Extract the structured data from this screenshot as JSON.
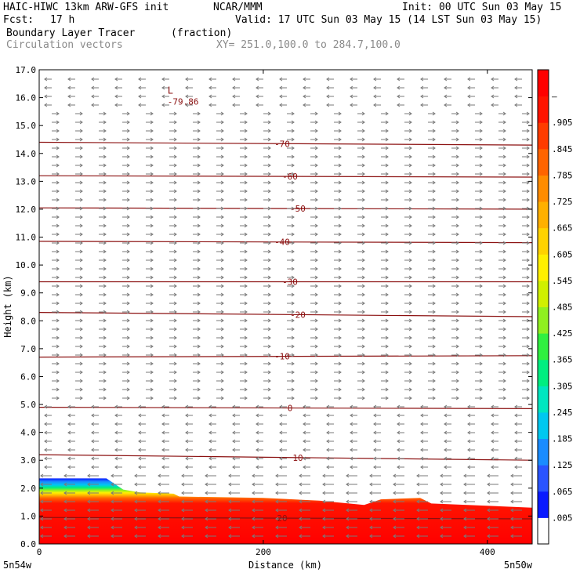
{
  "header": {
    "model": "HAIC-HIWC 13km ARW-GFS init",
    "org": "NCAR/MMM",
    "init": "Init: 00 UTC Sun 03 May 15",
    "fcst_label": "Fcst:",
    "fcst_value": "17 h",
    "valid": "Valid: 17 UTC Sun 03 May 15 (14 LST Sun 03 May 15)",
    "field": "Boundary Layer Tracer",
    "units": "(fraction)",
    "vectors": "Circulation vectors",
    "xy": "XY= 251.0,100.0 to 284.7,100.0"
  },
  "chart_data": {
    "type": "heatmap",
    "title": "Boundary Layer Tracer",
    "xlabel": "Distance (km)",
    "ylabel": "Height (km)",
    "xlim": [
      0,
      440
    ],
    "ylim": [
      0,
      17
    ],
    "x_ticks": [
      "0",
      "200",
      "400"
    ],
    "y_ticks": [
      "0.0",
      "1.0",
      "2.0",
      "3.0",
      "4.0",
      "5.0",
      "6.0",
      "7.0",
      "8.0",
      "9.0",
      "10.0",
      "11.0",
      "12.0",
      "13.0",
      "14.0",
      "15.0",
      "16.0",
      "17.0"
    ],
    "corner_labels": {
      "left": "5n54w",
      "right": "5n50w"
    },
    "colorbar_labels": [
      ".005",
      ".065",
      ".125",
      ".185",
      ".245",
      ".305",
      ".365",
      ".425",
      ".485",
      ".545",
      ".605",
      ".665",
      ".725",
      ".785",
      ".845",
      ".905",
      "–"
    ],
    "colorbar_colors": [
      "#ffffff",
      "#0a1aff",
      "#2a54ff",
      "#1a8cff",
      "#00c8f0",
      "#00e6c0",
      "#00ee80",
      "#30f040",
      "#90f020",
      "#d0f000",
      "#fff000",
      "#ffd200",
      "#ffb000",
      "#ff8c00",
      "#ff6400",
      "#ff3c00",
      "#ff1400",
      "#ff0000"
    ],
    "boundary_layer_top_km": [
      [
        0,
        2.35
      ],
      [
        60,
        2.35
      ],
      [
        75,
        1.95
      ],
      [
        90,
        1.85
      ],
      [
        120,
        1.8
      ],
      [
        125,
        1.7
      ],
      [
        200,
        1.65
      ],
      [
        250,
        1.55
      ],
      [
        290,
        1.4
      ],
      [
        305,
        1.6
      ],
      [
        340,
        1.65
      ],
      [
        350,
        1.45
      ],
      [
        440,
        1.3
      ]
    ],
    "isotherms_c": [
      {
        "label": "-70",
        "x": [
          0,
          440
        ],
        "y": [
          14.4,
          14.3
        ]
      },
      {
        "label": "-60",
        "x": [
          0,
          440
        ],
        "y": [
          13.2,
          13.15
        ]
      },
      {
        "label": "-50",
        "x": [
          0,
          440
        ],
        "y": [
          12.05,
          12.0
        ]
      },
      {
        "label": "-40",
        "x": [
          0,
          440
        ],
        "y": [
          10.85,
          10.8
        ]
      },
      {
        "label": "-30",
        "x": [
          0,
          440
        ],
        "y": [
          9.4,
          9.4
        ]
      },
      {
        "label": "-20",
        "x": [
          0,
          440
        ],
        "y": [
          8.3,
          8.15
        ]
      },
      {
        "label": "-10",
        "x": [
          0,
          440
        ],
        "y": [
          6.7,
          6.75
        ]
      },
      {
        "label": "0",
        "x": [
          0,
          440
        ],
        "y": [
          4.9,
          4.85
        ]
      },
      {
        "label": "10",
        "x": [
          0,
          440
        ],
        "y": [
          3.2,
          3.0
        ]
      },
      {
        "label": "20",
        "x": [
          0,
          440
        ],
        "y": [
          0.95,
          0.9
        ]
      }
    ],
    "low_annotation": {
      "symbol": "L",
      "value": "-79.86",
      "x": 60,
      "y": 16.2
    }
  }
}
